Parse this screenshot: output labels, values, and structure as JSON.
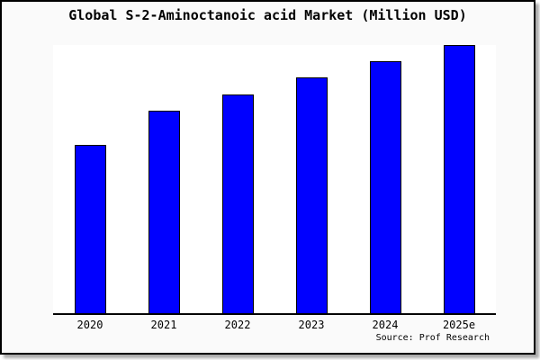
{
  "title": "Global S-2-Aminoctanoic acid Market (Million USD)",
  "source_note": "Source: Prof Research",
  "colors": {
    "bar_fill": "#0000FF",
    "bar_border": "#000000",
    "frame_background": "#FAFAFA",
    "plot_background": "#FFFFFF",
    "axis_line": "#000000",
    "frame_border": "#000000",
    "shadow": "#AAAAAA",
    "text": "#000000"
  },
  "chart_data": {
    "type": "bar",
    "title": "Global S-2-Aminoctanoic acid Market (Million USD)",
    "categories": [
      "2020",
      "2021",
      "2022",
      "2023",
      "2024",
      "2025e"
    ],
    "values": [
      62.6,
      75.4,
      81.5,
      87.9,
      94.0,
      100.0
    ],
    "value_note": "no y-axis shown; relative units with 2025e normalized to 100",
    "xlabel": "",
    "ylabel": "",
    "ylim": [
      0,
      100.4
    ],
    "grid": false,
    "legend": null,
    "bar_color": "#0000FF",
    "source": "Source: Prof Research"
  }
}
